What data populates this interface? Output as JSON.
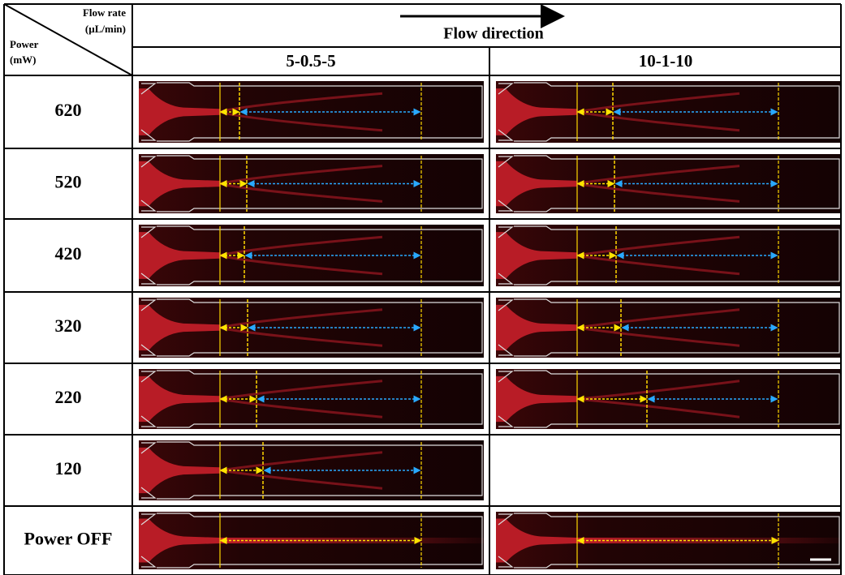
{
  "header": {
    "corner": {
      "flow_rate": "Flow rate",
      "flow_unit": "(µL/min)",
      "power": "Power",
      "power_unit": "(mW)"
    },
    "flow_direction": "Flow direction",
    "columns": [
      "5-0.5-5",
      "10-1-10"
    ]
  },
  "table": {
    "rows": [
      "620",
      "520",
      "420",
      "320",
      "220",
      "120",
      "Power OFF"
    ]
  }
}
